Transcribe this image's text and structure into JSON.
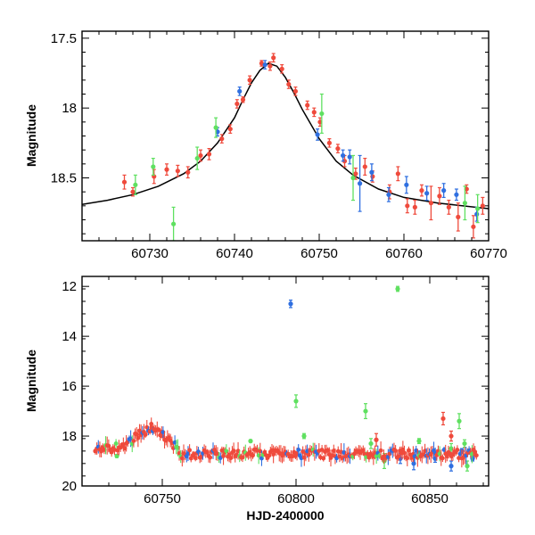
{
  "chart_data": [
    {
      "type": "scatter",
      "title": "",
      "xlabel": "",
      "ylabel": "Magnitude",
      "xlim": [
        60722,
        60770
      ],
      "ylim": [
        18.95,
        17.45
      ],
      "y_inverted": true,
      "xticks": [
        60730,
        60740,
        60750,
        60760,
        60770
      ],
      "yticks": [
        17.5,
        18,
        18.5
      ],
      "yminor": [
        17.6,
        17.7,
        17.8,
        17.9,
        18.1,
        18.2,
        18.3,
        18.4,
        18.6,
        18.7,
        18.8,
        18.9
      ],
      "model_curve": {
        "color": "#000000",
        "x": [
          60722,
          60725,
          60728,
          60731,
          60734,
          60736,
          60738,
          60740,
          60741,
          60742,
          60743,
          60744,
          60745,
          60746,
          60747,
          60748,
          60750,
          60752,
          60754,
          60757,
          60760,
          60764,
          60770
        ],
        "y": [
          18.69,
          18.66,
          18.62,
          18.56,
          18.47,
          18.38,
          18.25,
          18.07,
          17.94,
          17.82,
          17.73,
          17.68,
          17.7,
          17.78,
          17.89,
          18.01,
          18.22,
          18.38,
          18.48,
          18.58,
          18.64,
          18.68,
          18.72
        ]
      },
      "series": [
        {
          "color": "#ef4a3c",
          "x": [
            60727.0,
            60728.0,
            60730.5,
            60732.0,
            60733.3,
            60734.5,
            60736.0,
            60737.0,
            60738.5,
            60739.5,
            60740.3,
            60741.0,
            60741.8,
            60743.2,
            60744.2,
            60744.6,
            60745.6,
            60746.4,
            60747.2,
            60748.6,
            60749.4,
            60750.1,
            60751.2,
            60752.2,
            60753.0,
            60754.3,
            60755.4,
            60756.3,
            60758.3,
            60759.3,
            60760.4,
            60761.3,
            60762.1,
            60763.2,
            60764.2,
            60765.3,
            60766.4,
            60767.4,
            60768.2,
            60769.3
          ],
          "y": [
            18.53,
            18.6,
            18.49,
            18.44,
            18.45,
            18.46,
            18.34,
            18.33,
            18.22,
            18.15,
            17.97,
            17.94,
            17.8,
            17.68,
            17.7,
            17.64,
            17.72,
            17.83,
            17.88,
            17.98,
            18.03,
            18.1,
            18.25,
            18.29,
            18.38,
            18.47,
            18.42,
            18.49,
            18.6,
            18.47,
            18.7,
            18.71,
            18.59,
            18.68,
            18.63,
            18.71,
            18.78,
            18.58,
            18.85,
            18.7
          ],
          "err": [
            0.05,
            0.03,
            0.05,
            0.04,
            0.04,
            0.04,
            0.04,
            0.04,
            0.03,
            0.03,
            0.03,
            0.02,
            0.03,
            0.02,
            0.03,
            0.03,
            0.03,
            0.03,
            0.03,
            0.03,
            0.03,
            0.03,
            0.03,
            0.03,
            0.04,
            0.04,
            0.06,
            0.04,
            0.05,
            0.05,
            0.05,
            0.05,
            0.04,
            0.12,
            0.06,
            0.05,
            0.1,
            0.03,
            0.08,
            0.06
          ]
        },
        {
          "color": "#2f6fe0",
          "x": [
            60738.0,
            60740.6,
            60743.6,
            60749.8,
            60752.8,
            60753.6,
            60754.8,
            60756.2,
            60758.2,
            60760.3,
            60762.7,
            60764.7,
            60766.2,
            60768.6
          ],
          "y": [
            18.17,
            17.88,
            17.69,
            18.19,
            18.34,
            18.35,
            18.54,
            18.46,
            18.62,
            18.55,
            18.61,
            18.59,
            18.62,
            18.76
          ],
          "err": [
            0.03,
            0.03,
            0.03,
            0.04,
            0.04,
            0.05,
            0.2,
            0.06,
            0.05,
            0.06,
            0.05,
            0.05,
            0.04,
            0.05
          ]
        },
        {
          "color": "#5fe060",
          "x": [
            60728.3,
            60730.4,
            60732.8,
            60735.6,
            60737.8,
            60750.3,
            60754.0,
            60767.2,
            60768.7
          ],
          "y": [
            18.55,
            18.42,
            18.83,
            18.36,
            18.14,
            18.04,
            18.5,
            18.68,
            18.72
          ],
          "err": [
            0.07,
            0.06,
            0.12,
            0.08,
            0.07,
            0.14,
            0.16,
            0.12,
            0.1
          ]
        }
      ]
    },
    {
      "type": "scatter",
      "title": "",
      "xlabel": "HJD-2400000",
      "ylabel": "Magnitude",
      "xlim": [
        60720,
        60872
      ],
      "ylim": [
        20,
        11.6
      ],
      "y_inverted": true,
      "xticks": [
        60750,
        60800,
        60850
      ],
      "xtick_minor_step": 10,
      "yticks": [
        12,
        14,
        16,
        18,
        20
      ],
      "ytick_minor_step": 0.5,
      "series": [
        {
          "name": "",
          "color": "#ef4a3c",
          "x": [
            60725,
            60735,
            60742,
            60746,
            60750,
            60770,
            60800,
            60830,
            60855,
            60858,
            60866
          ],
          "y": [
            18.6,
            18.35,
            17.95,
            17.65,
            18.0,
            18.7,
            18.7,
            18.15,
            17.3,
            18.0,
            18.7
          ],
          "err": [
            0.05,
            0.04,
            0.03,
            0.03,
            0.03,
            0.05,
            0.05,
            0.25,
            0.25,
            0.2,
            0.06
          ]
        },
        {
          "name": "",
          "color": "#2f6fe0",
          "x": [
            60798,
            60839,
            60844,
            60846,
            60852,
            60858,
            60862,
            60866
          ],
          "y": [
            12.7,
            18.9,
            19.1,
            18.7,
            18.9,
            19.2,
            18.6,
            18.9
          ],
          "err": [
            0.15,
            0.2,
            0.25,
            0.1,
            0.15,
            0.2,
            0.1,
            0.1
          ]
        },
        {
          "name": "",
          "color": "#5fe060",
          "x": [
            60733,
            60773,
            60783,
            60800,
            60803,
            60826,
            60828,
            60833,
            60838,
            60846,
            60858,
            60861,
            60863,
            60864
          ],
          "y": [
            18.8,
            18.6,
            18.2,
            16.6,
            18.0,
            17.0,
            18.3,
            19.0,
            12.1,
            18.2,
            18.5,
            17.4,
            18.3,
            19.2
          ],
          "err": [
            0.06,
            0.08,
            0.05,
            0.25,
            0.1,
            0.3,
            0.2,
            0.3,
            0.1,
            0.1,
            0.2,
            0.3,
            0.15,
            0.2
          ]
        }
      ]
    }
  ]
}
